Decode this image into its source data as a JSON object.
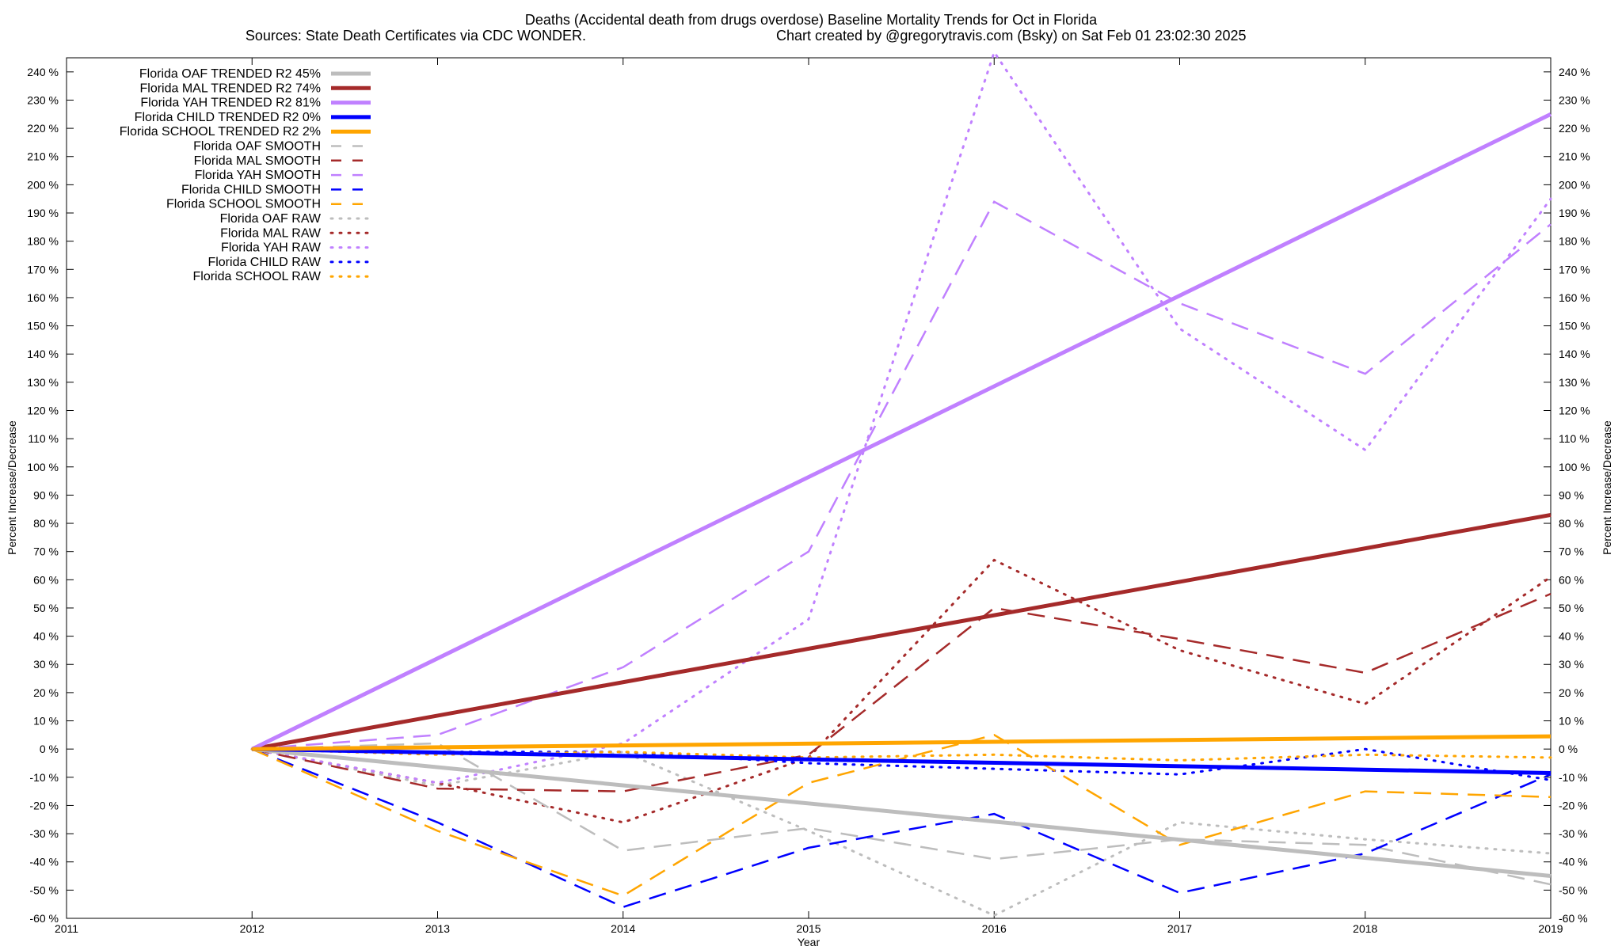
{
  "chart_data": {
    "type": "line",
    "title": "Deaths (Accidental death from drugs overdose)  Baseline Mortality Trends for Oct in Florida",
    "subtitle_left": "Sources: State Death Certificates via CDC WONDER.",
    "subtitle_right": "Chart created by @gregorytravis.com (Bsky) on Sat Feb 01 23:02:30 2025",
    "xlabel": "Year",
    "ylabel": "Percent Increase/Decrease",
    "xlim": [
      2011,
      2019
    ],
    "ylim": [
      -60,
      245
    ],
    "x_ticks": [
      2011,
      2012,
      2013,
      2014,
      2015,
      2016,
      2017,
      2018,
      2019
    ],
    "x_tick_labels": [
      "2011",
      "2012",
      "2013",
      "2014",
      "2015",
      "2016",
      "2017",
      "2018",
      "2019"
    ],
    "y_ticks": [
      -60,
      -50,
      -40,
      -30,
      -20,
      -10,
      0,
      10,
      20,
      30,
      40,
      50,
      60,
      70,
      80,
      90,
      100,
      110,
      120,
      130,
      140,
      150,
      160,
      170,
      180,
      190,
      200,
      210,
      220,
      230,
      240
    ],
    "y_tick_labels": [
      "-60 %",
      "-50 %",
      "-40 %",
      "-30 %",
      "-20 %",
      "-10 %",
      "0 %",
      "10 %",
      "20 %",
      "30 %",
      "40 %",
      "50 %",
      "60 %",
      "70 %",
      "80 %",
      "90 %",
      "100 %",
      "110 %",
      "120 %",
      "130 %",
      "140 %",
      "150 %",
      "160 %",
      "170 %",
      "180 %",
      "190 %",
      "200 %",
      "210 %",
      "220 %",
      "230 %",
      "240 %"
    ],
    "grid": false,
    "legend_position": "top-left",
    "series": [
      {
        "name": "Florida OAF TRENDED R2  45%",
        "style": "solid",
        "color": "#bdbdbd",
        "x": [
          2012,
          2019
        ],
        "y": [
          0,
          -45
        ]
      },
      {
        "name": "Florida MAL TRENDED R2  74%",
        "style": "solid",
        "color": "#a52a2a",
        "x": [
          2012,
          2019
        ],
        "y": [
          0,
          83
        ]
      },
      {
        "name": "Florida YAH TRENDED R2  81%",
        "style": "solid",
        "color": "#c080ff",
        "x": [
          2012,
          2019
        ],
        "y": [
          0,
          225
        ]
      },
      {
        "name": "Florida CHILD TRENDED R2   0%",
        "style": "solid",
        "color": "#0000ff",
        "x": [
          2012,
          2019
        ],
        "y": [
          0,
          -8.5
        ]
      },
      {
        "name": "Florida SCHOOL TRENDED R2   2%",
        "style": "solid",
        "color": "#ffa500",
        "x": [
          2012,
          2019
        ],
        "y": [
          0,
          4.5
        ]
      },
      {
        "name": "Florida OAF SMOOTH",
        "style": "dashed",
        "color": "#bdbdbd",
        "x": [
          2012,
          2013,
          2014,
          2015,
          2016,
          2017,
          2018,
          2019
        ],
        "y": [
          0,
          2,
          -36,
          -28,
          -39,
          -32,
          -34,
          -48
        ]
      },
      {
        "name": "Florida MAL SMOOTH",
        "style": "dashed",
        "color": "#a52a2a",
        "x": [
          2012,
          2013,
          2014,
          2015,
          2016,
          2017,
          2018,
          2019
        ],
        "y": [
          0,
          -14,
          -15,
          -2,
          50,
          39,
          27,
          55
        ]
      },
      {
        "name": "Florida YAH SMOOTH",
        "style": "dashed",
        "color": "#c080ff",
        "x": [
          2012,
          2013,
          2014,
          2015,
          2016,
          2017,
          2018,
          2019
        ],
        "y": [
          0,
          5,
          29,
          70,
          194,
          158,
          133,
          186
        ]
      },
      {
        "name": "Florida CHILD SMOOTH",
        "style": "dashed",
        "color": "#0000ff",
        "x": [
          2012,
          2013,
          2014,
          2015,
          2016,
          2017,
          2018,
          2019
        ],
        "y": [
          0,
          -26,
          -56,
          -35,
          -23,
          -51,
          -37,
          -9
        ]
      },
      {
        "name": "Florida SCHOOL SMOOTH",
        "style": "dashed",
        "color": "#ffa500",
        "x": [
          2012,
          2013,
          2014,
          2015,
          2016,
          2017,
          2018,
          2019
        ],
        "y": [
          0,
          -29,
          -52,
          -12,
          5,
          -34,
          -15,
          -17
        ]
      },
      {
        "name": "Florida OAF RAW",
        "style": "dotted",
        "color": "#bdbdbd",
        "x": [
          2012,
          2013,
          2014,
          2015,
          2016,
          2017,
          2018,
          2019
        ],
        "y": [
          0,
          -13,
          -1,
          -29,
          -59,
          -26,
          -32,
          -37
        ]
      },
      {
        "name": "Florida MAL RAW",
        "style": "dotted",
        "color": "#a52a2a",
        "x": [
          2012,
          2013,
          2014,
          2015,
          2016,
          2017,
          2018,
          2019
        ],
        "y": [
          0,
          -12,
          -26,
          -3,
          67,
          35,
          16,
          61
        ]
      },
      {
        "name": "Florida YAH RAW",
        "style": "dotted",
        "color": "#c080ff",
        "x": [
          2012,
          2013,
          2014,
          2015,
          2016,
          2017,
          2018,
          2019
        ],
        "y": [
          0,
          -12,
          2,
          46,
          247,
          149,
          106,
          195
        ]
      },
      {
        "name": "Florida CHILD RAW",
        "style": "dotted",
        "color": "#0000ff",
        "x": [
          2012,
          2013,
          2014,
          2015,
          2016,
          2017,
          2018,
          2019
        ],
        "y": [
          0,
          -1,
          -1,
          -5,
          -7,
          -9,
          0,
          -11
        ]
      },
      {
        "name": "Florida SCHOOL RAW",
        "style": "dotted",
        "color": "#ffa500",
        "x": [
          2012,
          2013,
          2014,
          2015,
          2016,
          2017,
          2018,
          2019
        ],
        "y": [
          0,
          -2,
          -1,
          -3,
          -2,
          -4,
          -2,
          -3
        ]
      }
    ]
  }
}
